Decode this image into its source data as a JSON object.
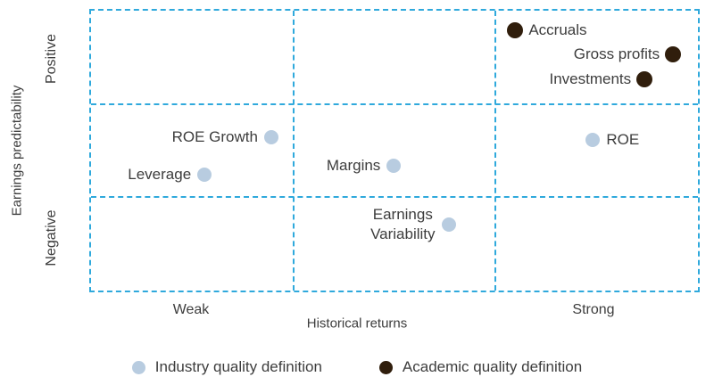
{
  "chart_data": {
    "type": "scatter",
    "title": "",
    "xlabel": "Historical returns",
    "ylabel": "Earnings predictability",
    "x_ticks": {
      "left": "Weak",
      "right": "Strong"
    },
    "y_ticks": {
      "top": "Positive",
      "bottom": "Negative"
    },
    "grid": {
      "style": "dashed",
      "color": "#2fa9dc",
      "rows": 3,
      "cols": 3
    },
    "legend_position": "bottom",
    "series": [
      {
        "name": "Industry quality definition",
        "color": "#b8cce0",
        "dot_size": 16,
        "points": [
          {
            "label": "ROE Growth",
            "x_pct": 29.7,
            "y_pct": 45.3,
            "label_side": "left"
          },
          {
            "label": "Leverage",
            "x_pct": 18.7,
            "y_pct": 58.5,
            "label_side": "left"
          },
          {
            "label": "Margins",
            "x_pct": 49.9,
            "y_pct": 55.3,
            "label_side": "left"
          },
          {
            "label": "Earnings\nVariability",
            "x_pct": 58.9,
            "y_pct": 76.4,
            "label_side": "left",
            "align": "center"
          },
          {
            "label": "ROE",
            "x_pct": 82.7,
            "y_pct": 46.2,
            "label_side": "right"
          }
        ]
      },
      {
        "name": "Academic quality definition",
        "color": "#301e0c",
        "dot_size": 18,
        "points": [
          {
            "label": "Accruals",
            "x_pct": 69.9,
            "y_pct": 6.9,
            "label_side": "right"
          },
          {
            "label": "Gross profits",
            "x_pct": 95.9,
            "y_pct": 15.7,
            "label_side": "left"
          },
          {
            "label": "Investments",
            "x_pct": 91.2,
            "y_pct": 24.5,
            "label_side": "left"
          }
        ]
      }
    ]
  }
}
